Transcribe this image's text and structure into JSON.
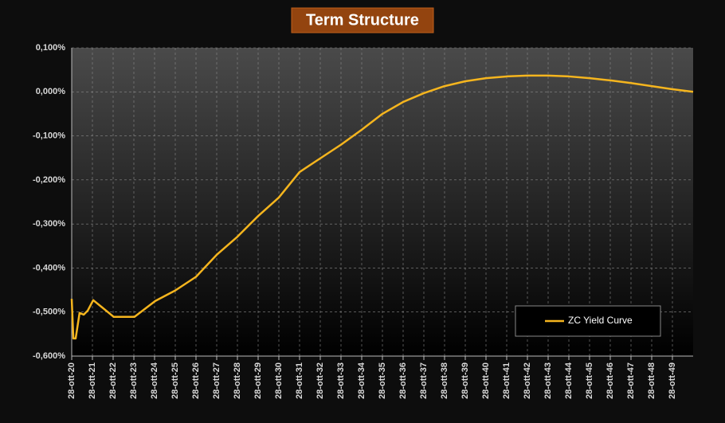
{
  "chart_data": {
    "type": "line",
    "title": "Term Structure",
    "x": [
      2020,
      2020.08,
      2020.19,
      2020.38,
      2020.58,
      2020.77,
      2021.04,
      2022.03,
      2023.03,
      2024.03,
      2025,
      2026,
      2027,
      2028,
      2029,
      2030,
      2031,
      2032,
      2033,
      2034,
      2035,
      2036,
      2037,
      2038,
      2039,
      2040,
      2041,
      2042,
      2043,
      2044,
      2045,
      2046,
      2047,
      2048,
      2049,
      2050
    ],
    "series": [
      {
        "name": "ZC Yield Curve",
        "color": "#f5b51e",
        "values": [
          -0.47,
          -0.56,
          -0.56,
          -0.502,
          -0.506,
          -0.497,
          -0.473,
          -0.511,
          -0.511,
          -0.475,
          -0.451,
          -0.42,
          -0.37,
          -0.329,
          -0.282,
          -0.24,
          -0.182,
          -0.151,
          -0.12,
          -0.086,
          -0.05,
          -0.023,
          -0.003,
          0.013,
          0.024,
          0.031,
          0.035,
          0.037,
          0.037,
          0.035,
          0.031,
          0.026,
          0.02,
          0.013,
          0.006,
          0
        ]
      }
    ],
    "xlim": [
      2020,
      2050
    ],
    "xticks": [
      {
        "value": 2020,
        "label": "28-ott-20"
      },
      {
        "value": 2021,
        "label": "28-ott-21"
      },
      {
        "value": 2022,
        "label": "28-ott-22"
      },
      {
        "value": 2023,
        "label": "28-ott-23"
      },
      {
        "value": 2024,
        "label": "28-ott-24"
      },
      {
        "value": 2025,
        "label": "28-ott-25"
      },
      {
        "value": 2026,
        "label": "28-ott-26"
      },
      {
        "value": 2027,
        "label": "28-ott-27"
      },
      {
        "value": 2028,
        "label": "28-ott-28"
      },
      {
        "value": 2029,
        "label": "28-ott-29"
      },
      {
        "value": 2030,
        "label": "28-ott-30"
      },
      {
        "value": 2031,
        "label": "28-ott-31"
      },
      {
        "value": 2032,
        "label": "28-ott-32"
      },
      {
        "value": 2033,
        "label": "28-ott-33"
      },
      {
        "value": 2034,
        "label": "28-ott-34"
      },
      {
        "value": 2035,
        "label": "28-ott-35"
      },
      {
        "value": 2036,
        "label": "28-ott-36"
      },
      {
        "value": 2037,
        "label": "28-ott-37"
      },
      {
        "value": 2038,
        "label": "28-ott-38"
      },
      {
        "value": 2039,
        "label": "28-ott-39"
      },
      {
        "value": 2040,
        "label": "28-ott-40"
      },
      {
        "value": 2041,
        "label": "28-ott-41"
      },
      {
        "value": 2042,
        "label": "28-ott-42"
      },
      {
        "value": 2043,
        "label": "28-ott-43"
      },
      {
        "value": 2044,
        "label": "28-ott-44"
      },
      {
        "value": 2045,
        "label": "28-ott-45"
      },
      {
        "value": 2046,
        "label": "28-ott-46"
      },
      {
        "value": 2047,
        "label": "28-ott-47"
      },
      {
        "value": 2048,
        "label": "28-ott-48"
      },
      {
        "value": 2049,
        "label": "28-ott-49"
      }
    ],
    "ylim": [
      -0.6,
      0.1
    ],
    "yticks": [
      {
        "value": 0.1,
        "label": "0,100%"
      },
      {
        "value": 0,
        "label": "0,000%"
      },
      {
        "value": -0.1,
        "label": "-0,100%"
      },
      {
        "value": -0.2,
        "label": "-0,200%"
      },
      {
        "value": -0.3,
        "label": "-0,300%"
      },
      {
        "value": -0.4,
        "label": "-0,400%"
      },
      {
        "value": -0.5,
        "label": "-0,500%"
      },
      {
        "value": -0.6,
        "label": "-0,600%"
      }
    ],
    "grid": true,
    "legend": "lower right"
  }
}
